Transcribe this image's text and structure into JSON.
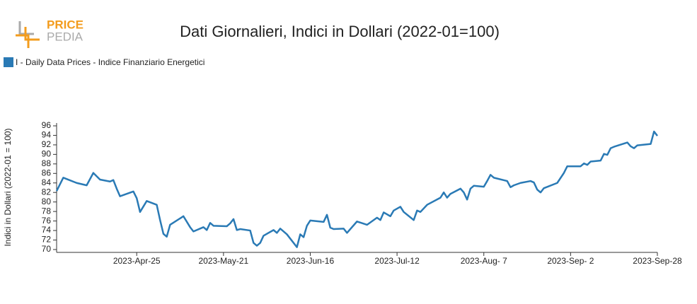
{
  "logo": {
    "first": "PRICE",
    "second": "PEDIA"
  },
  "chart_data": {
    "type": "line",
    "title": "Dati Giornalieri, Indici in Dollari (2022-01=100)",
    "y_label": "Indici in Dollari (2022-01 = 100)",
    "legend": "corner-top-left",
    "series": [
      {
        "name": "I - Daily Data Prices - Indice Finanziario Energetici",
        "color": "#2a7ab5",
        "values": [
          82.3,
          85.1,
          84.0,
          83.5,
          86.1,
          84.7,
          84.3,
          84.6,
          82.8,
          81.2,
          82.2,
          80.8,
          77.9,
          80.2,
          79.4,
          76.2,
          73.3,
          72.7,
          75.2,
          77.0,
          74.7,
          73.8,
          74.7,
          74.1,
          75.6,
          75.0,
          74.9,
          75.5,
          76.4,
          74.1,
          74.3,
          74.0,
          71.4,
          70.8,
          71.4,
          72.9,
          74.1,
          73.5,
          74.4,
          73.2,
          70.5,
          73.2,
          72.6,
          75.0,
          76.1,
          75.8,
          77.3,
          74.6,
          74.3,
          74.4,
          73.5,
          75.9,
          75.2,
          76.7,
          76.2,
          77.8,
          77.0,
          78.2,
          79.0,
          77.9,
          76.2,
          78.2,
          77.9,
          79.4,
          80.9,
          82.0,
          80.9,
          81.7,
          82.8,
          82.0,
          80.5,
          82.8,
          83.4,
          83.2,
          84.4,
          85.7,
          85.1,
          84.4,
          83.1,
          83.5,
          84.0,
          84.4,
          84.1,
          82.6,
          82.0,
          82.9,
          84.0,
          86.1,
          87.5,
          87.5,
          88.1,
          87.8,
          88.5,
          88.7,
          90.1,
          89.9,
          91.3,
          91.6,
          92.5,
          91.7,
          91.3,
          91.9,
          92.2,
          94.8,
          93.9
        ]
      }
    ],
    "x": [
      "2023-04-01",
      "2023-04-03",
      "2023-04-07",
      "2023-04-10",
      "2023-04-12",
      "2023-04-14",
      "2023-04-17",
      "2023-04-18",
      "2023-04-19",
      "2023-04-20",
      "2023-04-24",
      "2023-04-25",
      "2023-04-26",
      "2023-04-28",
      "2023-05-01",
      "2023-05-02",
      "2023-05-03",
      "2023-05-04",
      "2023-05-05",
      "2023-05-09",
      "2023-05-11",
      "2023-05-12",
      "2023-05-15",
      "2023-05-16",
      "2023-05-17",
      "2023-05-18",
      "2023-05-22",
      "2023-05-23",
      "2023-05-24",
      "2023-05-25",
      "2023-05-26",
      "2023-05-29",
      "2023-05-30",
      "2023-05-31",
      "2023-06-01",
      "2023-06-02",
      "2023-06-05",
      "2023-06-06",
      "2023-06-07",
      "2023-06-09",
      "2023-06-12",
      "2023-06-13",
      "2023-06-14",
      "2023-06-15",
      "2023-06-16",
      "2023-06-20",
      "2023-06-21",
      "2023-06-22",
      "2023-06-23",
      "2023-06-26",
      "2023-06-27",
      "2023-06-30",
      "2023-07-03",
      "2023-07-06",
      "2023-07-07",
      "2023-07-08",
      "2023-07-10",
      "2023-07-11",
      "2023-07-13",
      "2023-07-14",
      "2023-07-17",
      "2023-07-18",
      "2023-07-19",
      "2023-07-21",
      "2023-07-25",
      "2023-07-26",
      "2023-07-27",
      "2023-07-28",
      "2023-07-31",
      "2023-08-01",
      "2023-08-02",
      "2023-08-03",
      "2023-08-04",
      "2023-08-07",
      "2023-08-08",
      "2023-08-09",
      "2023-08-10",
      "2023-08-14",
      "2023-08-15",
      "2023-08-16",
      "2023-08-18",
      "2023-08-21",
      "2023-08-22",
      "2023-08-23",
      "2023-08-24",
      "2023-08-25",
      "2023-08-29",
      "2023-08-31",
      "2023-09-01",
      "2023-09-05",
      "2023-09-06",
      "2023-09-07",
      "2023-09-08",
      "2023-09-11",
      "2023-09-12",
      "2023-09-13",
      "2023-09-14",
      "2023-09-15",
      "2023-09-19",
      "2023-09-20",
      "2023-09-21",
      "2023-09-22",
      "2023-09-26",
      "2023-09-27",
      "2023-09-28"
    ],
    "xlim": [
      "2023-04-01",
      "2023-09-28"
    ],
    "xticks": [
      {
        "value": "2023-04-25",
        "label": "2023-Apr-25"
      },
      {
        "value": "2023-05-21",
        "label": "2023-May-21"
      },
      {
        "value": "2023-06-16",
        "label": "2023-Jun-16"
      },
      {
        "value": "2023-07-12",
        "label": "2023-Jul-12"
      },
      {
        "value": "2023-08-07",
        "label": "2023-Aug- 7"
      },
      {
        "value": "2023-09-02",
        "label": "2023-Sep- 2"
      },
      {
        "value": "2023-09-28",
        "label": "2023-Sep-28"
      }
    ],
    "ylim": [
      69.4,
      96
    ],
    "yticks": [
      70,
      72,
      74,
      76,
      78,
      80,
      82,
      84,
      86,
      88,
      90,
      92,
      94,
      96
    ]
  }
}
